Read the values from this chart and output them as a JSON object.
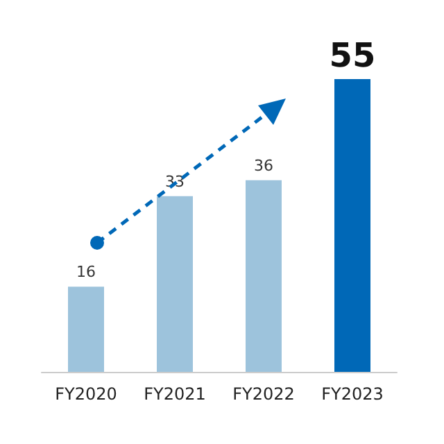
{
  "chart_data": {
    "type": "bar",
    "categories": [
      "FY2020",
      "FY2021",
      "FY2022",
      "FY2023"
    ],
    "values": [
      16,
      33,
      36,
      55
    ],
    "colors": [
      "#9dc3dc",
      "#9dc3dc",
      "#9dc3dc",
      "#0068b7"
    ],
    "data_labels": true
  }
}
